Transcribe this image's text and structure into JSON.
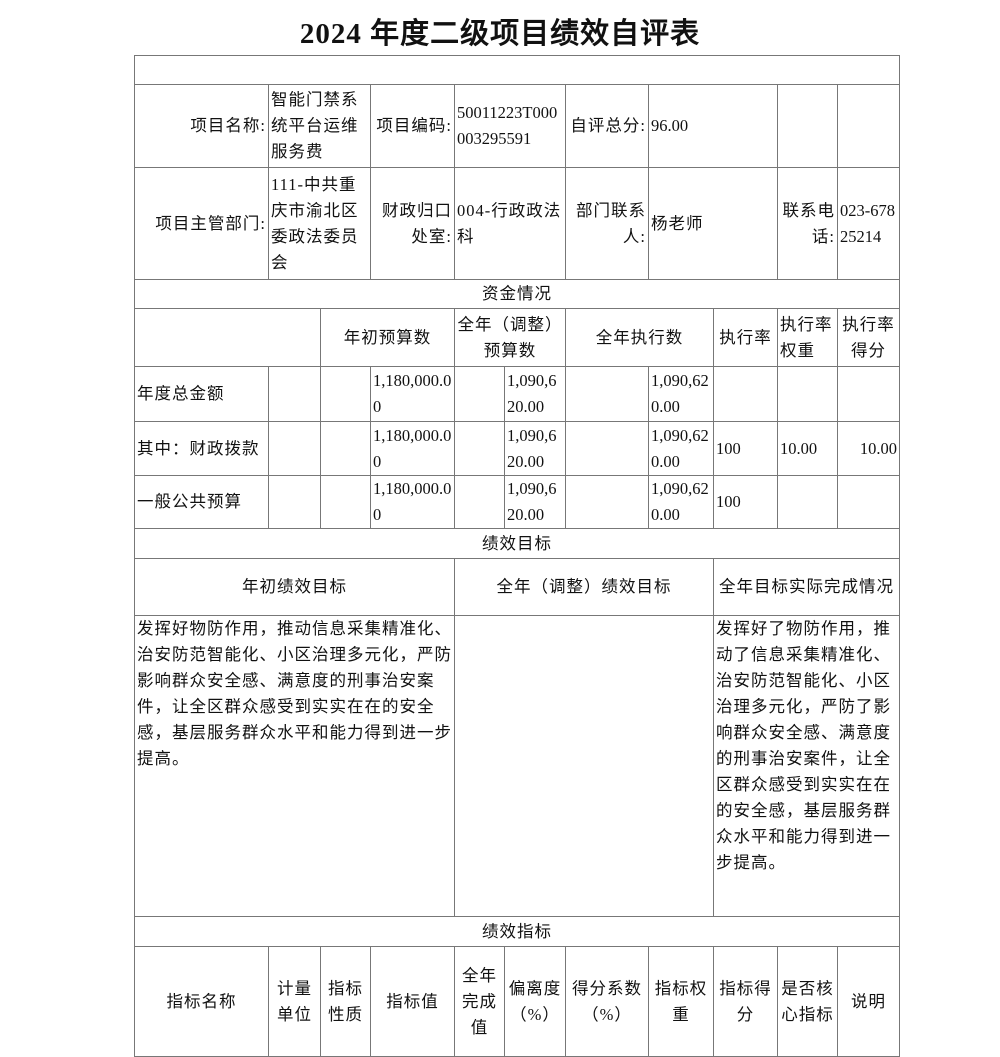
{
  "title": "2024 年度二级项目绩效自评表",
  "info": {
    "project_name_label": "项目名称:",
    "project_name": "智能门禁系统平台运维服务费",
    "project_code_label": "项目编码:",
    "project_code": "50011223T000003295591",
    "score_label": "自评总分:",
    "score": "96.00",
    "dept_label": "项目主管部门:",
    "dept": "111-中共重庆市渝北区委政法委员会",
    "finance_label": "财政归口处室:",
    "finance": "004-行政政法科",
    "contact_label": "部门联系人:",
    "contact": "杨老师",
    "phone_label": "联系电话:",
    "phone": "023-67825214"
  },
  "funds": {
    "section": "资金情况",
    "headers": [
      "年初预算数",
      "全年（调整）预算数",
      "全年执行数",
      "执行率",
      "执行率权重",
      "执行率得分"
    ],
    "rows": [
      {
        "label": "年度总金额",
        "initial": "1,180,000.00",
        "adjusted": "1,090,620.00",
        "executed": "1,090,620.00",
        "rate": "",
        "weight": "",
        "score": ""
      },
      {
        "label": "其中：财政拨款",
        "initial": "1,180,000.00",
        "adjusted": "1,090,620.00",
        "executed": "1,090,620.00",
        "rate": "100",
        "weight": "10.00",
        "score": "10.00"
      },
      {
        "label": "一般公共预算",
        "initial": "1,180,000.00",
        "adjusted": "1,090,620.00",
        "executed": "1,090,620.00",
        "rate": "100",
        "weight": "",
        "score": ""
      }
    ]
  },
  "goals": {
    "section": "绩效目标",
    "headers": [
      "年初绩效目标",
      "全年（调整）绩效目标",
      "全年目标实际完成情况"
    ],
    "initial": "发挥好物防作用，推动信息采集精准化、治安防范智能化、小区治理多元化，严防影响群众安全感、满意度的刑事治安案件，让全区群众感受到实实在在的安全感，基层服务群众水平和能力得到进一步提高。",
    "adjusted": "",
    "actual": "发挥好了物防作用，推动了信息采集精准化、治安防范智能化、小区治理多元化，严防了影响群众安全感、满意度的刑事治安案件，让全区群众感受到实实在在的安全感，基层服务群众水平和能力得到进一步提高。"
  },
  "indicators": {
    "section": "绩效指标",
    "headers": [
      "指标名称",
      "计量单位",
      "指标性质",
      "指标值",
      "全年完成值",
      "偏离度（%）",
      "得分系数（%）",
      "指标权重",
      "指标得分",
      "是否核心指标",
      "说明"
    ]
  }
}
